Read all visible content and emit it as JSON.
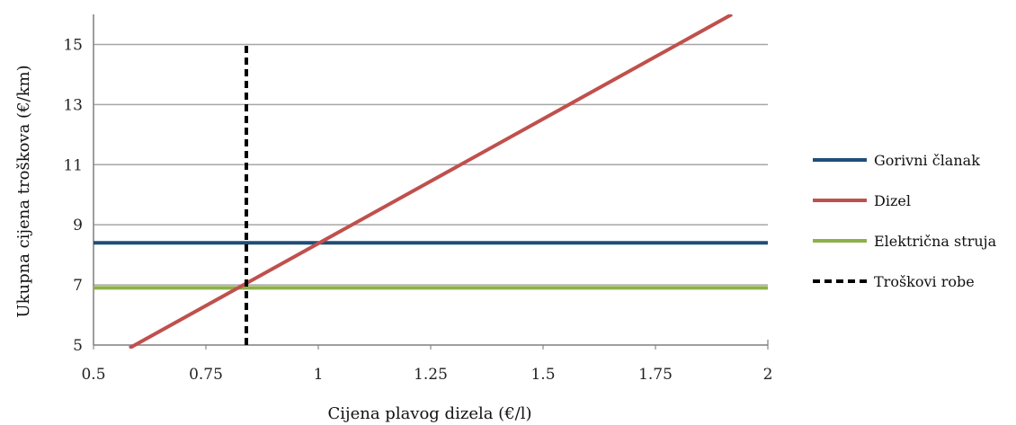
{
  "chart_data": {
    "type": "line",
    "xlabel": "Cijena plavog dizela (€/l)",
    "ylabel": "Ukupna cijena troškova (€/km)",
    "xlim": [
      0.5,
      2
    ],
    "ylim": [
      5,
      16
    ],
    "x_ticks": [
      "0.5",
      "0.75",
      "1",
      "1.25",
      "1.5",
      "1.75",
      "2"
    ],
    "y_ticks": [
      "5",
      "7",
      "9",
      "11",
      "13",
      "15"
    ],
    "grid": "horizontal",
    "legend_position": "right",
    "series": [
      {
        "name": "Gorivni članak",
        "color": "#1f4e79",
        "style": "solid",
        "x": [
          0.5,
          2
        ],
        "y": [
          8.4,
          8.4
        ]
      },
      {
        "name": "Dizel",
        "color": "#c0504d",
        "style": "solid",
        "x": [
          0.58,
          1.92
        ],
        "y": [
          4.9,
          16.0
        ]
      },
      {
        "name": "Električna struja",
        "color": "#8db04a",
        "style": "solid",
        "x": [
          0.5,
          2
        ],
        "y": [
          6.9,
          6.9
        ]
      },
      {
        "name": "Troškovi robe",
        "color": "#000000",
        "style": "dashed",
        "x": [
          0.84,
          0.84
        ],
        "y": [
          5,
          15
        ]
      }
    ]
  }
}
